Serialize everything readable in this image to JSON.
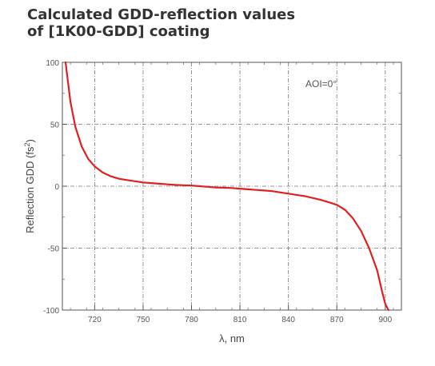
{
  "title_line1": "Calculated GDD-reflection values",
  "title_line2": "of [1K00-GDD] coating",
  "chart_data": {
    "type": "line",
    "title": "Calculated GDD-reflection values of [1K00-GDD] coating",
    "xlabel": "λ, nm",
    "ylabel": "Reflection GDD (fs²)",
    "xlim": [
      700,
      910
    ],
    "ylim": [
      -100,
      100
    ],
    "xticks": [
      720,
      750,
      780,
      810,
      840,
      870,
      900
    ],
    "yticks": [
      100,
      50,
      0,
      -50,
      -100
    ],
    "grid": true,
    "annotation": "AOI=0°",
    "series": [
      {
        "color": "#e02020",
        "x": [
          702,
          705,
          708,
          712,
          716,
          720,
          725,
          730,
          735,
          740,
          745,
          750,
          755,
          760,
          765,
          770,
          775,
          780,
          785,
          790,
          795,
          800,
          805,
          810,
          815,
          820,
          825,
          830,
          835,
          840,
          845,
          850,
          855,
          860,
          865,
          870,
          875,
          880,
          885,
          890,
          895,
          898,
          900,
          902
        ],
        "y": [
          100,
          68,
          48,
          32,
          22,
          16,
          11,
          8,
          6,
          5,
          4,
          3,
          2.5,
          2,
          1.5,
          1,
          0.8,
          0.5,
          0,
          -0.5,
          -1,
          -1.2,
          -1.5,
          -2,
          -2.5,
          -3,
          -3.5,
          -4,
          -5,
          -6,
          -7,
          -8,
          -9.5,
          -11,
          -13,
          -15,
          -19,
          -26,
          -36,
          -50,
          -68,
          -85,
          -95,
          -100
        ]
      }
    ]
  }
}
